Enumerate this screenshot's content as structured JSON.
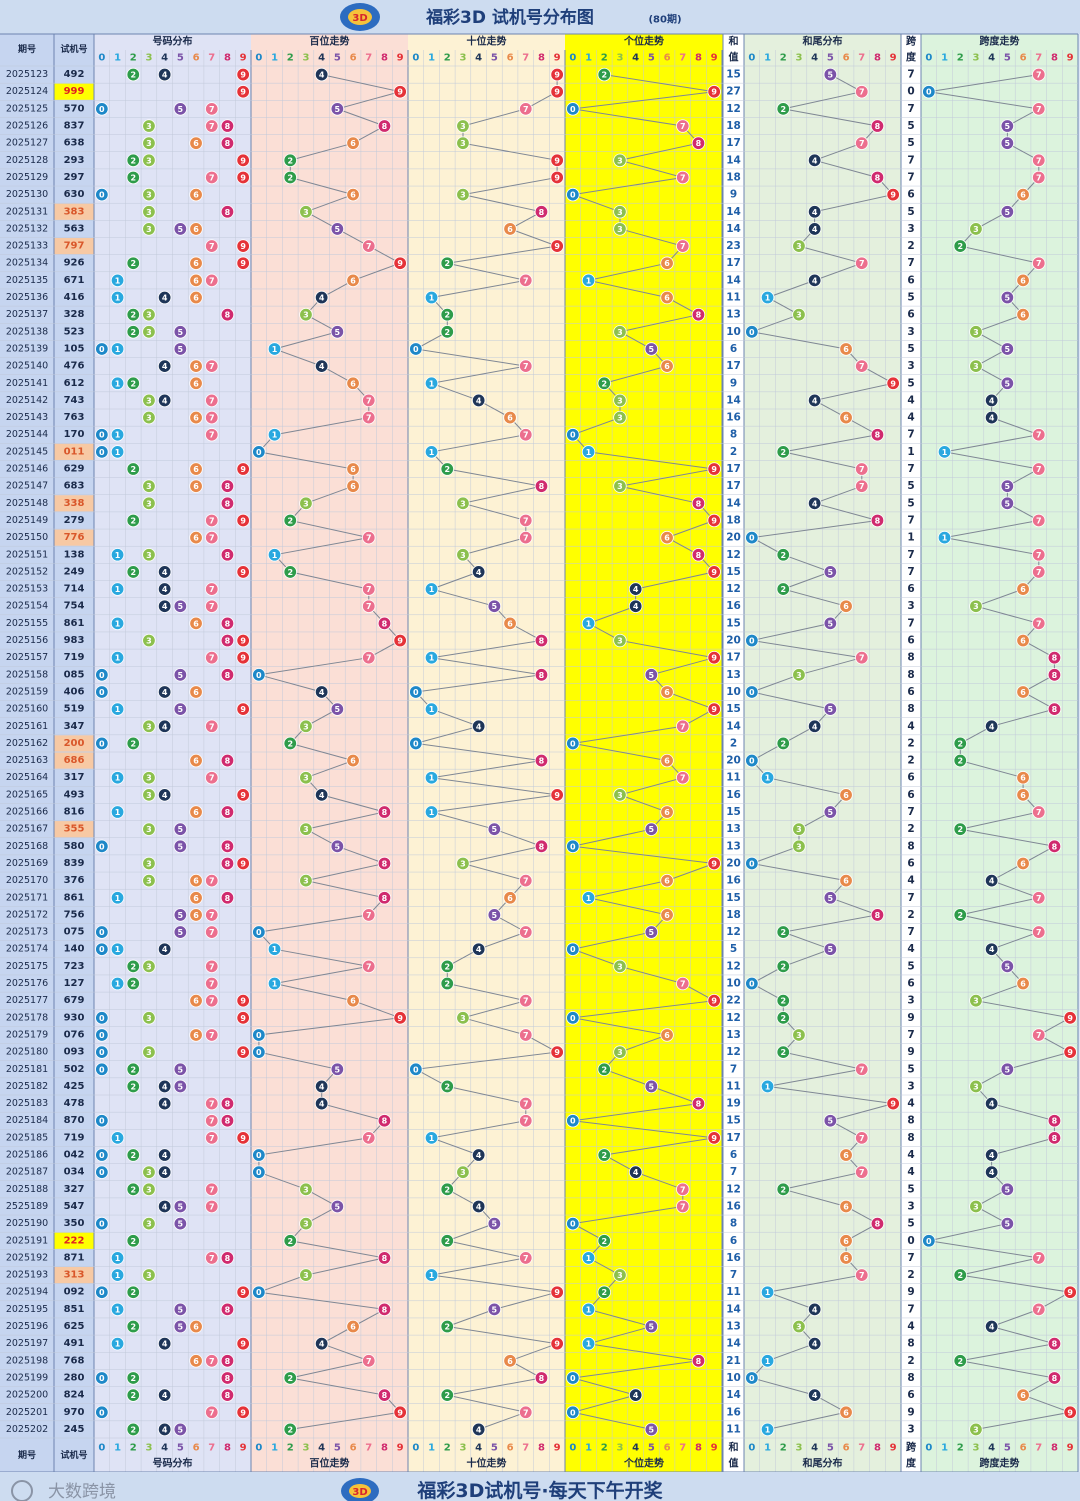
{
  "header": {
    "title": "福彩3D 试机号分布图",
    "subtitle": "(80期)"
  },
  "footer": {
    "title": "福彩3D试机号·每天下午开奖",
    "watermark": "大数跨境"
  },
  "columns": {
    "issue": "期号",
    "number": "试机号",
    "digit_dist": "号码分布",
    "hundreds": "百位走势",
    "tens": "十位走势",
    "units": "个位走势",
    "sum": [
      "和",
      "值"
    ],
    "sum_tail": "和尾分布",
    "span": [
      "跨",
      "度"
    ],
    "span_trend": "跨度走势"
  },
  "digits": [
    "0",
    "1",
    "2",
    "3",
    "4",
    "5",
    "6",
    "7",
    "8",
    "9"
  ],
  "colors": {
    "digit": [
      "#1e88c8",
      "#29a8df",
      "#2e9c4a",
      "#8cc04d",
      "#1e3558",
      "#7b53a8",
      "#e8894a",
      "#ec6f8e",
      "#d02a6e",
      "#e53238"
    ],
    "band_issue": "#c6d5f0",
    "band_digit": "#dfe3f5",
    "band_hundreds": "#fbdfd6",
    "band_tens": "#fdf2d4",
    "band_units": "#ffff00",
    "band_sum": "#ffffff",
    "band_tail": "#e4f0dd",
    "band_span": "#dcf3dd",
    "highlight_triple": "#ffff00",
    "highlight_pair": "#f7c9a4"
  },
  "chart_data": {
    "type": "table",
    "title": "福彩3D 试机号分布图",
    "rows": [
      {
        "issue": "2025123",
        "num": "492",
        "sum": 15,
        "span": 7
      },
      {
        "issue": "2025124",
        "num": "999",
        "sum": 27,
        "span": 0
      },
      {
        "issue": "2025125",
        "num": "570",
        "sum": 12,
        "span": 7
      },
      {
        "issue": "2025126",
        "num": "837",
        "sum": 18,
        "span": 5
      },
      {
        "issue": "2025127",
        "num": "638",
        "sum": 17,
        "span": 5
      },
      {
        "issue": "2025128",
        "num": "293",
        "sum": 14,
        "span": 7
      },
      {
        "issue": "2025129",
        "num": "297",
        "sum": 18,
        "span": 7
      },
      {
        "issue": "2025130",
        "num": "630",
        "sum": 9,
        "span": 6
      },
      {
        "issue": "2025131",
        "num": "383",
        "sum": 14,
        "span": 5
      },
      {
        "issue": "2025132",
        "num": "563",
        "sum": 14,
        "span": 3
      },
      {
        "issue": "2025133",
        "num": "797",
        "sum": 23,
        "span": 2
      },
      {
        "issue": "2025134",
        "num": "926",
        "sum": 17,
        "span": 7
      },
      {
        "issue": "2025135",
        "num": "671",
        "sum": 14,
        "span": 6
      },
      {
        "issue": "2025136",
        "num": "416",
        "sum": 11,
        "span": 5
      },
      {
        "issue": "2025137",
        "num": "328",
        "sum": 13,
        "span": 6
      },
      {
        "issue": "2025138",
        "num": "523",
        "sum": 10,
        "span": 3
      },
      {
        "issue": "2025139",
        "num": "105",
        "sum": 6,
        "span": 5
      },
      {
        "issue": "2025140",
        "num": "476",
        "sum": 17,
        "span": 3
      },
      {
        "issue": "2025141",
        "num": "612",
        "sum": 9,
        "span": 5
      },
      {
        "issue": "2025142",
        "num": "743",
        "sum": 14,
        "span": 4
      },
      {
        "issue": "2025143",
        "num": "763",
        "sum": 16,
        "span": 4
      },
      {
        "issue": "2025144",
        "num": "170",
        "sum": 8,
        "span": 7
      },
      {
        "issue": "2025145",
        "num": "011",
        "sum": 2,
        "span": 1
      },
      {
        "issue": "2025146",
        "num": "629",
        "sum": 17,
        "span": 7
      },
      {
        "issue": "2025147",
        "num": "683",
        "sum": 17,
        "span": 5
      },
      {
        "issue": "2025148",
        "num": "338",
        "sum": 14,
        "span": 5
      },
      {
        "issue": "2025149",
        "num": "279",
        "sum": 18,
        "span": 7
      },
      {
        "issue": "2025150",
        "num": "776",
        "sum": 20,
        "span": 1
      },
      {
        "issue": "2025151",
        "num": "138",
        "sum": 12,
        "span": 7
      },
      {
        "issue": "2025152",
        "num": "249",
        "sum": 15,
        "span": 7
      },
      {
        "issue": "2025153",
        "num": "714",
        "sum": 12,
        "span": 6
      },
      {
        "issue": "2025154",
        "num": "754",
        "sum": 16,
        "span": 3
      },
      {
        "issue": "2025155",
        "num": "861",
        "sum": 15,
        "span": 7
      },
      {
        "issue": "2025156",
        "num": "983",
        "sum": 20,
        "span": 6
      },
      {
        "issue": "2025157",
        "num": "719",
        "sum": 17,
        "span": 8
      },
      {
        "issue": "2025158",
        "num": "085",
        "sum": 13,
        "span": 8
      },
      {
        "issue": "2025159",
        "num": "406",
        "sum": 10,
        "span": 6
      },
      {
        "issue": "2025160",
        "num": "519",
        "sum": 15,
        "span": 8
      },
      {
        "issue": "2025161",
        "num": "347",
        "sum": 14,
        "span": 4
      },
      {
        "issue": "2025162",
        "num": "200",
        "sum": 2,
        "span": 2
      },
      {
        "issue": "2025163",
        "num": "686",
        "sum": 20,
        "span": 2
      },
      {
        "issue": "2025164",
        "num": "317",
        "sum": 11,
        "span": 6
      },
      {
        "issue": "2025165",
        "num": "493",
        "sum": 16,
        "span": 6
      },
      {
        "issue": "2025166",
        "num": "816",
        "sum": 15,
        "span": 7
      },
      {
        "issue": "2025167",
        "num": "355",
        "sum": 13,
        "span": 2
      },
      {
        "issue": "2025168",
        "num": "580",
        "sum": 13,
        "span": 8
      },
      {
        "issue": "2025169",
        "num": "839",
        "sum": 20,
        "span": 6
      },
      {
        "issue": "2025170",
        "num": "376",
        "sum": 16,
        "span": 4
      },
      {
        "issue": "2025171",
        "num": "861",
        "sum": 15,
        "span": 7
      },
      {
        "issue": "2025172",
        "num": "756",
        "sum": 18,
        "span": 2
      },
      {
        "issue": "2025173",
        "num": "075",
        "sum": 12,
        "span": 7
      },
      {
        "issue": "2025174",
        "num": "140",
        "sum": 5,
        "span": 4
      },
      {
        "issue": "2025175",
        "num": "723",
        "sum": 12,
        "span": 5
      },
      {
        "issue": "2025176",
        "num": "127",
        "sum": 10,
        "span": 6
      },
      {
        "issue": "2025177",
        "num": "679",
        "sum": 22,
        "span": 3
      },
      {
        "issue": "2025178",
        "num": "930",
        "sum": 12,
        "span": 9
      },
      {
        "issue": "2025179",
        "num": "076",
        "sum": 13,
        "span": 7
      },
      {
        "issue": "2025180",
        "num": "093",
        "sum": 12,
        "span": 9
      },
      {
        "issue": "2025181",
        "num": "502",
        "sum": 7,
        "span": 5
      },
      {
        "issue": "2025182",
        "num": "425",
        "sum": 11,
        "span": 3
      },
      {
        "issue": "2025183",
        "num": "478",
        "sum": 19,
        "span": 4
      },
      {
        "issue": "2025184",
        "num": "870",
        "sum": 15,
        "span": 8
      },
      {
        "issue": "2025185",
        "num": "719",
        "sum": 17,
        "span": 8
      },
      {
        "issue": "2025186",
        "num": "042",
        "sum": 6,
        "span": 4
      },
      {
        "issue": "2025187",
        "num": "034",
        "sum": 7,
        "span": 4
      },
      {
        "issue": "2025188",
        "num": "327",
        "sum": 12,
        "span": 5
      },
      {
        "issue": "2525189",
        "num": "547",
        "sum": 16,
        "span": 3
      },
      {
        "issue": "2025190",
        "num": "350",
        "sum": 8,
        "span": 5
      },
      {
        "issue": "2025191",
        "num": "222",
        "sum": 6,
        "span": 0
      },
      {
        "issue": "2025192",
        "num": "871",
        "sum": 16,
        "span": 7
      },
      {
        "issue": "2025193",
        "num": "313",
        "sum": 7,
        "span": 2
      },
      {
        "issue": "2025194",
        "num": "092",
        "sum": 11,
        "span": 9
      },
      {
        "issue": "2025195",
        "num": "851",
        "sum": 14,
        "span": 7
      },
      {
        "issue": "2025196",
        "num": "625",
        "sum": 13,
        "span": 4
      },
      {
        "issue": "2025197",
        "num": "491",
        "sum": 14,
        "span": 8
      },
      {
        "issue": "2025198",
        "num": "768",
        "sum": 21,
        "span": 2
      },
      {
        "issue": "2025199",
        "num": "280",
        "sum": 10,
        "span": 8
      },
      {
        "issue": "2025200",
        "num": "824",
        "sum": 14,
        "span": 6
      },
      {
        "issue": "2025201",
        "num": "970",
        "sum": 16,
        "span": 9
      },
      {
        "issue": "2025202",
        "num": "245",
        "sum": 11,
        "span": 3
      }
    ]
  }
}
